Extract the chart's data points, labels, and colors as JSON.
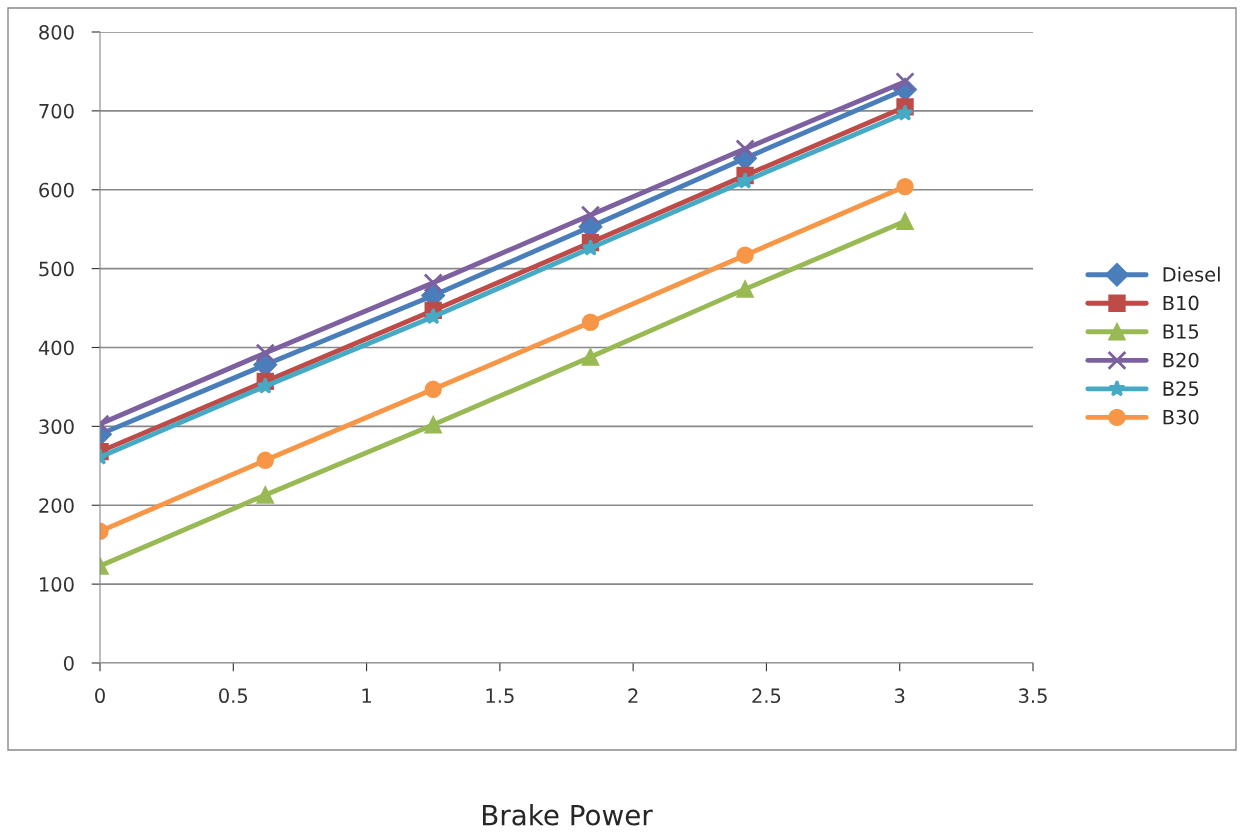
{
  "chart_data": {
    "type": "line",
    "xlabel": "Brake Power",
    "x": [
      0,
      0.62,
      1.25,
      1.84,
      2.42,
      3.02
    ],
    "series": [
      {
        "name": "Diesel",
        "color": "#4a7ebb",
        "marker": "diamond",
        "values": [
          290,
          378,
          466,
          553,
          640,
          727
        ]
      },
      {
        "name": "B10",
        "color": "#be4b48",
        "marker": "square",
        "values": [
          268,
          357,
          447,
          533,
          618,
          705
        ]
      },
      {
        "name": "B15",
        "color": "#98b954",
        "marker": "triangle",
        "values": [
          123,
          213,
          302,
          388,
          474,
          560
        ]
      },
      {
        "name": "B20",
        "color": "#7d60a0",
        "marker": "cross",
        "values": [
          303,
          393,
          482,
          568,
          652,
          737
        ]
      },
      {
        "name": "B25",
        "color": "#46aac5",
        "marker": "star",
        "values": [
          261,
          351,
          439,
          526,
          611,
          697
        ]
      },
      {
        "name": "B30",
        "color": "#f79646",
        "marker": "circle",
        "values": [
          167,
          257,
          347,
          432,
          517,
          604
        ]
      }
    ],
    "xlim": [
      0,
      3.5
    ],
    "xticks": [
      0,
      0.5,
      1,
      1.5,
      2,
      2.5,
      3,
      3.5
    ],
    "ylim": [
      0,
      800
    ],
    "yticks": [
      0,
      100,
      200,
      300,
      400,
      500,
      600,
      700,
      800
    ],
    "grid": "y",
    "legend": "right",
    "line_style": "solid"
  }
}
